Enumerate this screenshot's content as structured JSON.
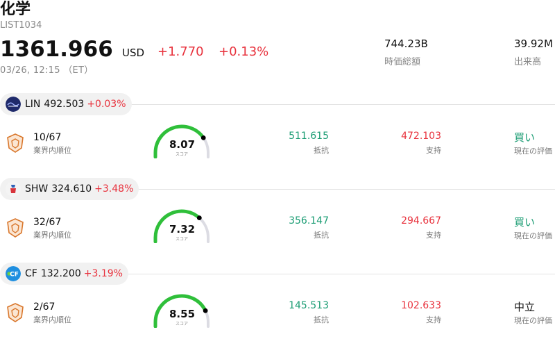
{
  "header": {
    "title": "化学",
    "code": "LIST1034",
    "price": "1361.966",
    "currency": "USD",
    "change": "+1.770",
    "change_pct": "+0.13%",
    "timestamp": "03/26, 12:15 （ET）",
    "stats": [
      {
        "value": "744.23B",
        "label": "時価総額"
      },
      {
        "value": "39.92M",
        "label": "出来高"
      }
    ]
  },
  "stocks": [
    {
      "symbol": "LIN",
      "price": "492.503",
      "change_pct": "+0.03%",
      "logo_icon": "linde-logo-icon",
      "rank": "10/67",
      "rank_label": "業界内順位",
      "score": "8.07",
      "score_value": 8.07,
      "score_label": "スコア",
      "resistance": "511.615",
      "resistance_label": "抵抗",
      "support": "472.103",
      "support_label": "支持",
      "evaluation": "買い",
      "evaluation_label": "現在の評価",
      "evaluation_color": "#1a9c73"
    },
    {
      "symbol": "SHW",
      "price": "324.610",
      "change_pct": "+3.48%",
      "logo_icon": "sherwin-williams-logo-icon",
      "rank": "32/67",
      "rank_label": "業界内順位",
      "score": "7.32",
      "score_value": 7.32,
      "score_label": "スコア",
      "resistance": "356.147",
      "resistance_label": "抵抗",
      "support": "294.667",
      "support_label": "支持",
      "evaluation": "買い",
      "evaluation_label": "現在の評価",
      "evaluation_color": "#1a9c73"
    },
    {
      "symbol": "CF",
      "price": "132.200",
      "change_pct": "+3.19%",
      "logo_icon": "cf-industries-logo-icon",
      "rank": "2/67",
      "rank_label": "業界内順位",
      "score": "8.55",
      "score_value": 8.55,
      "score_label": "スコア",
      "resistance": "145.513",
      "resistance_label": "抵抗",
      "support": "102.633",
      "support_label": "支持",
      "evaluation": "中立",
      "evaluation_label": "現在の評価",
      "evaluation_color": "#111111"
    }
  ],
  "colors": {
    "up": "#e8323d",
    "resistance": "#1a9c73",
    "gauge_fill": "#2fbf3a",
    "gauge_track": "#dcdce3",
    "rank_badge": "#d9772c"
  }
}
